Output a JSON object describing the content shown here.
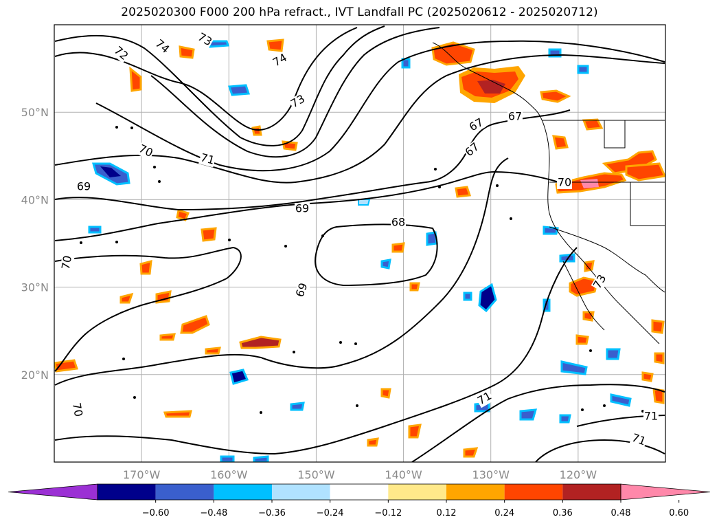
{
  "title": "2025020300 F000 200 hPa refract., IVT Landfall PC (2025020612 - 2025020712)",
  "map": {
    "lon_range": [
      -180,
      -110
    ],
    "lat_range": [
      10,
      60
    ],
    "lat_ticks": [
      {
        "value": 50,
        "label": "50°N"
      },
      {
        "value": 40,
        "label": "40°N"
      },
      {
        "value": 30,
        "label": "30°N"
      },
      {
        "value": 20,
        "label": "20°N"
      }
    ],
    "lon_ticks": [
      {
        "value": -170,
        "label": "170°W"
      },
      {
        "value": -160,
        "label": "160°W"
      },
      {
        "value": -150,
        "label": "150°W"
      },
      {
        "value": -140,
        "label": "140°W"
      },
      {
        "value": -130,
        "label": "130°W"
      },
      {
        "value": -120,
        "label": "120°W"
      }
    ],
    "gridlines": true,
    "contour_labels": [
      "72",
      "74",
      "73",
      "74",
      "73",
      "70",
      "71",
      "69",
      "69",
      "68",
      "69",
      "70",
      "67",
      "67",
      "67",
      "70",
      "73",
      "71",
      "71",
      "70",
      "71"
    ]
  },
  "colorbar": {
    "extend": "both",
    "tick_labels": [
      "−0.60",
      "−0.48",
      "−0.36",
      "−0.24",
      "−0.12",
      "0.12",
      "0.24",
      "0.36",
      "0.48",
      "0.60"
    ],
    "colors": [
      "#9b30d4",
      "#00008b",
      "#3a5fcd",
      "#00bfff",
      "#b0e2ff",
      "#ffffff",
      "#ffe98a",
      "#ffa500",
      "#ff4500",
      "#b22222",
      "#ff88aa"
    ]
  }
}
